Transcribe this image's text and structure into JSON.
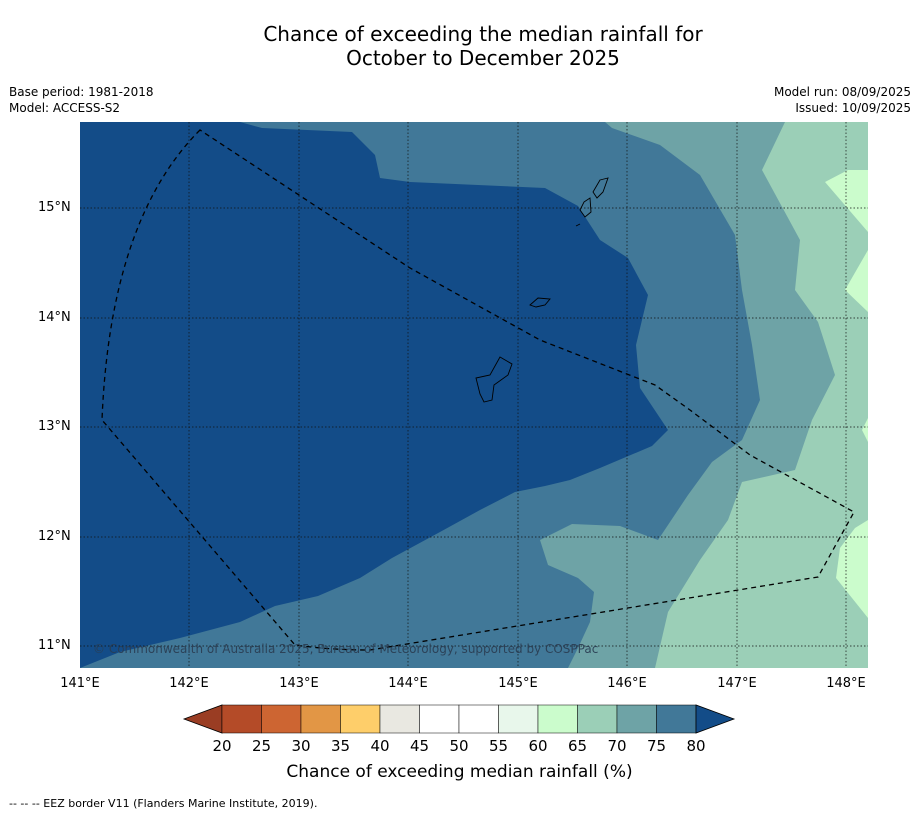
{
  "title": {
    "line1": "Chance of exceeding the median rainfall for",
    "line2": "October to December 2025"
  },
  "meta": {
    "base_period": "Base period: 1981-2018",
    "model": "Model: ACCESS-S2",
    "model_run": "Model run: 08/09/2025",
    "issued": "Issued: 10/09/2025"
  },
  "map": {
    "lat_labels": [
      "15°N",
      "14°N",
      "13°N",
      "12°N",
      "11°N"
    ],
    "lon_labels": [
      "141°E",
      "142°E",
      "143°E",
      "144°E",
      "145°E",
      "146°E",
      "147°E",
      "148°E"
    ],
    "copyright": "© Commonwealth of Australia 2025, Bureau of Meteorology, supported by COSPPac",
    "colors": {
      "band_80plus": "#134c88",
      "band_75_80": "#417898",
      "band_70_75": "#6ea3a6",
      "band_65_70": "#9bcfb7",
      "band_60_65": "#cbfccc"
    }
  },
  "colorbar": {
    "labels": [
      "20",
      "25",
      "30",
      "35",
      "40",
      "45",
      "50",
      "55",
      "60",
      "65",
      "70",
      "75",
      "80"
    ],
    "colors": [
      "#9a3d23",
      "#b44b28",
      "#cd6532",
      "#e29645",
      "#fece6a",
      "#e9e8e1",
      "#ffffff",
      "#ffffff",
      "#e8f7eb",
      "#cbfccc",
      "#9bcfb7",
      "#6ea3a6",
      "#417898",
      "#134c88"
    ],
    "title": "Chance of exceeding median rainfall (%)"
  },
  "footnote": "-- -- -- EEZ border V11 (Flanders Marine Institute, 2019)."
}
